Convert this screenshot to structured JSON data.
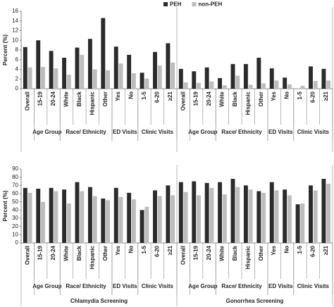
{
  "chart_data": [
    {
      "type": "bar",
      "ylabel": "Percent (%)",
      "ylim": [
        0,
        16
      ],
      "yticks": [
        0,
        2,
        4,
        6,
        8,
        10,
        12,
        14,
        16
      ],
      "grid": false,
      "legend": "top",
      "categories": [
        "Overall",
        "15-19",
        "20-24",
        "White",
        "Black",
        "Hispanic",
        "Other",
        "Yes",
        "No",
        "1-5",
        "6-20",
        "≥21",
        "Overall",
        "15-19",
        "20-24",
        "White",
        "Black",
        "Hispanic",
        "Other",
        "Yes",
        "No",
        "1-5",
        "6-20",
        "≥21"
      ],
      "group_labels": [
        "Age Group",
        "Race/ Ethnicity",
        "ED Visits",
        "Clinic Visits",
        "Age Group",
        "Race/ Ethnicity",
        "ED Visits",
        "Clinic Visits"
      ],
      "series": [
        {
          "name": "PEH",
          "color": "#2b2b2b",
          "values": [
            8.6,
            10.0,
            7.8,
            6.4,
            8.5,
            10.3,
            14.6,
            8.7,
            7.0,
            3.3,
            7.6,
            9.4,
            4.1,
            3.6,
            4.4,
            2.2,
            5.1,
            5.1,
            6.4,
            4.2,
            2.3,
            0,
            4.6,
            4.1
          ]
        },
        {
          "name": "non-PEH",
          "color": "#bdbdbd",
          "values": [
            4.4,
            4.5,
            4.2,
            2.9,
            7.0,
            4.0,
            3.8,
            5.2,
            3.2,
            2.1,
            4.8,
            5.4,
            1.3,
            1.2,
            1.5,
            0.7,
            2.7,
            0.8,
            1.1,
            1.7,
            0.9,
            0.6,
            1.6,
            1.7
          ]
        }
      ]
    },
    {
      "type": "bar",
      "ylabel": "Percent (%)",
      "ylim": [
        0,
        90
      ],
      "yticks": [
        0,
        10,
        20,
        30,
        40,
        50,
        60,
        70,
        80,
        90
      ],
      "grid": false,
      "categories": [
        "Overall",
        "15-19",
        "20-24",
        "White",
        "Black",
        "Hispanic",
        "Other",
        "Yes",
        "No",
        "1-5",
        "6-20",
        "≥21",
        "Overall",
        "15-19",
        "20-24",
        "White",
        "Black",
        "Hispanic",
        "Other",
        "Yes",
        "No",
        "1-5",
        "6-20",
        "≥21"
      ],
      "group_labels": [
        "Age Group",
        "Race/ Ethnicity",
        "ED Visits",
        "Clinic Visits",
        "Age Group",
        "Race/ Ethnicity",
        "ED Visits",
        "Clinic Visits"
      ],
      "section_labels": [
        "Chlamydia Screening",
        "Gonorrhea Screening"
      ],
      "series": [
        {
          "color": "#2b2b2b",
          "values": [
            67,
            66,
            67,
            65,
            74,
            68,
            54,
            67,
            61,
            40,
            64,
            70,
            74,
            75,
            73,
            74,
            78,
            70,
            63,
            74,
            65,
            47,
            70,
            78
          ]
        },
        {
          "color": "#bdbdbd",
          "values": [
            61,
            50,
            63,
            48,
            63,
            57,
            52,
            56,
            53,
            44,
            57,
            58,
            62,
            58,
            67,
            59,
            68,
            65,
            61,
            64,
            58,
            48,
            64,
            72
          ]
        }
      ]
    }
  ]
}
